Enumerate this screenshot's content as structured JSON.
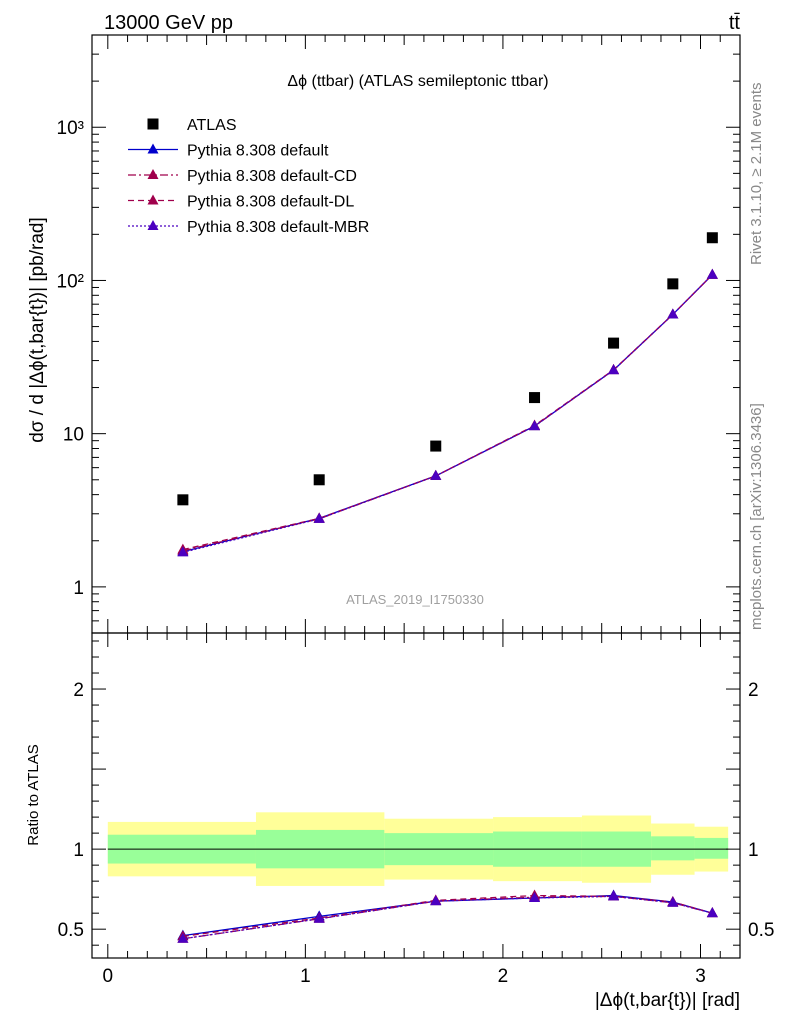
{
  "header": {
    "left": "13000 GeV pp",
    "right": "tt̄"
  },
  "side_labels": {
    "rivet": "Rivet 3.1.10, ≥ 2.1M events",
    "mcplots": "mcplots.cern.ch [arXiv:1306.3436]"
  },
  "chart_data": [
    {
      "type": "scatter",
      "panel": "main",
      "title": "Δϕ (ttbar) (ATLAS semileptonic ttbar)",
      "ylabel": "dσ / d |Δϕ(t,bar{t})| [pb/rad]",
      "yscale": "log",
      "ylim": [
        0.5,
        4000
      ],
      "xlim": [
        -0.08,
        3.2
      ],
      "x": [
        0.38,
        1.07,
        1.66,
        2.16,
        2.56,
        2.86,
        3.06
      ],
      "watermark": "ATLAS_2019_I1750330",
      "legend_position": "top-left",
      "yticks": [
        {
          "v": 1,
          "label": "1"
        },
        {
          "v": 10,
          "label": "10"
        },
        {
          "v": 100,
          "label": "10²"
        },
        {
          "v": 1000,
          "label": "10³"
        }
      ],
      "series": [
        {
          "name": "ATLAS",
          "kind": "data",
          "color": "#000000",
          "values": [
            3.7,
            5.0,
            8.3,
            17.2,
            39.0,
            95.0,
            190.0
          ]
        },
        {
          "name": "Pythia 8.308 default",
          "kind": "solid",
          "color": "#0000cc",
          "values": [
            1.7,
            2.8,
            5.3,
            11.2,
            26.0,
            60.0,
            109.0
          ]
        },
        {
          "name": "Pythia 8.308 default-CD",
          "kind": "dashdot",
          "color": "#a0004c",
          "values": [
            1.72,
            2.78,
            5.3,
            11.2,
            26.0,
            60.0,
            109.0
          ]
        },
        {
          "name": "Pythia 8.308 default-DL",
          "kind": "dashed",
          "color": "#a0004c",
          "values": [
            1.75,
            2.8,
            5.3,
            11.3,
            26.1,
            60.0,
            109.0
          ]
        },
        {
          "name": "Pythia 8.308 default-MBR",
          "kind": "dotted",
          "color": "#4b00c0",
          "values": [
            1.68,
            2.78,
            5.3,
            11.2,
            26.0,
            60.0,
            109.0
          ]
        }
      ]
    },
    {
      "type": "line",
      "panel": "ratio",
      "ylabel": "Ratio to ATLAS",
      "xlabel": "|Δϕ(t,bar{t})| [rad]",
      "ylim": [
        0.32,
        2.35
      ],
      "xlim": [
        -0.08,
        3.2
      ],
      "reference_line": 1,
      "yticks": [
        {
          "v": 0.5,
          "label": "0.5"
        },
        {
          "v": 1,
          "label": "1"
        },
        {
          "v": 2,
          "label": "2"
        }
      ],
      "xticks": [
        {
          "v": 0,
          "label": "0"
        },
        {
          "v": 1,
          "label": "1"
        },
        {
          "v": 2,
          "label": "2"
        },
        {
          "v": 3,
          "label": "3"
        }
      ],
      "x": [
        0.38,
        1.07,
        1.66,
        2.16,
        2.56,
        2.86,
        3.06
      ],
      "bands": [
        {
          "x0": 0.0,
          "x1": 0.75,
          "inner": [
            0.91,
            1.09
          ],
          "outer": [
            0.83,
            1.17
          ]
        },
        {
          "x0": 0.75,
          "x1": 1.4,
          "inner": [
            0.88,
            1.12
          ],
          "outer": [
            0.77,
            1.23
          ]
        },
        {
          "x0": 1.4,
          "x1": 1.95,
          "inner": [
            0.9,
            1.1
          ],
          "outer": [
            0.81,
            1.19
          ]
        },
        {
          "x0": 1.95,
          "x1": 2.4,
          "inner": [
            0.89,
            1.11
          ],
          "outer": [
            0.8,
            1.2
          ]
        },
        {
          "x0": 2.4,
          "x1": 2.75,
          "inner": [
            0.89,
            1.11
          ],
          "outer": [
            0.79,
            1.21
          ]
        },
        {
          "x0": 2.75,
          "x1": 2.97,
          "inner": [
            0.93,
            1.08
          ],
          "outer": [
            0.84,
            1.16
          ]
        },
        {
          "x0": 2.97,
          "x1": 3.14,
          "inner": [
            0.94,
            1.07
          ],
          "outer": [
            0.86,
            1.14
          ]
        }
      ],
      "series": [
        {
          "name": "Pythia 8.308 default",
          "kind": "solid",
          "color": "#0000cc",
          "values": [
            0.46,
            0.58,
            0.675,
            0.695,
            0.71,
            0.67,
            0.6
          ]
        },
        {
          "name": "Pythia 8.308 default-CD",
          "kind": "dashdot",
          "color": "#a0004c",
          "values": [
            0.44,
            0.565,
            0.675,
            0.7,
            0.705,
            0.665,
            0.6
          ]
        },
        {
          "name": "Pythia 8.308 default-DL",
          "kind": "dashed",
          "color": "#a0004c",
          "values": [
            0.455,
            0.57,
            0.68,
            0.71,
            0.705,
            0.67,
            0.6
          ]
        },
        {
          "name": "Pythia 8.308 default-MBR",
          "kind": "dotted",
          "color": "#4b00c0",
          "values": [
            0.44,
            0.565,
            0.675,
            0.695,
            0.705,
            0.665,
            0.6
          ]
        }
      ]
    }
  ]
}
